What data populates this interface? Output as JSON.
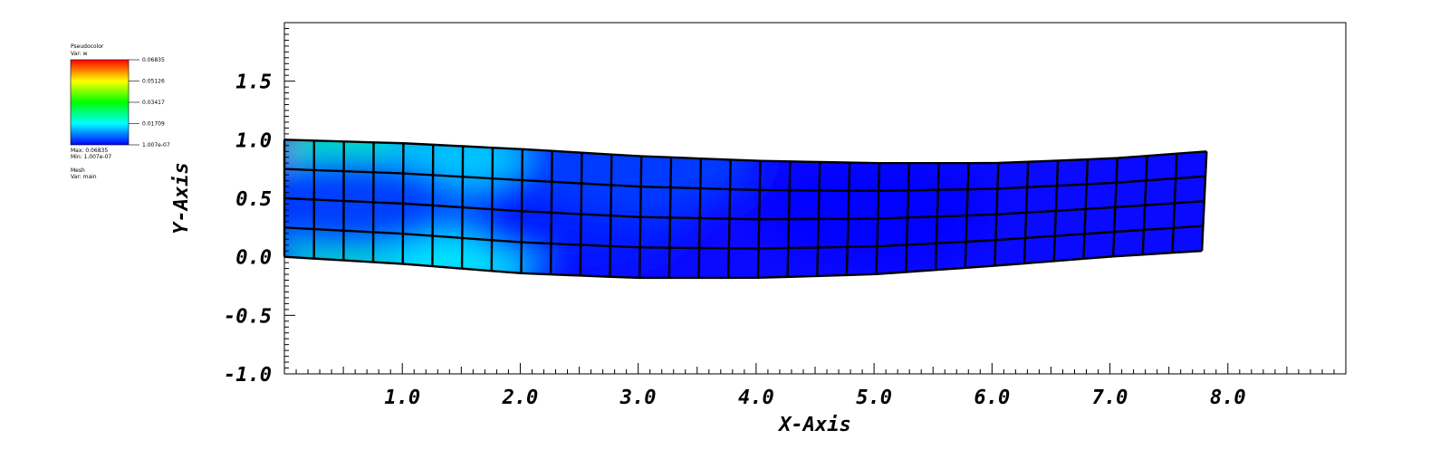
{
  "chart_data": {
    "type": "heatmap",
    "xlabel": "X-Axis",
    "ylabel": "Y-Axis",
    "xlim": [
      0.0,
      9.0
    ],
    "ylim": [
      -1.0,
      2.0
    ],
    "xticks": [
      "1.0",
      "2.0",
      "3.0",
      "4.0",
      "5.0",
      "6.0",
      "7.0",
      "8.0"
    ],
    "xtick_values": [
      1,
      2,
      3,
      4,
      5,
      6,
      7,
      8
    ],
    "yticks": [
      "-1.0",
      "-0.5",
      "0.0",
      "0.5",
      "1.0",
      "1.5"
    ],
    "ytick_values": [
      -1.0,
      -0.5,
      0.0,
      0.5,
      1.0,
      1.5
    ],
    "mesh": {
      "columns": 31,
      "rows": 4,
      "x_start": 0.0,
      "x_end": 7.8,
      "bottom_edge": [
        [
          0.0,
          0.0
        ],
        [
          1.0,
          -0.06
        ],
        [
          2.0,
          -0.14
        ],
        [
          3.0,
          -0.18
        ],
        [
          4.0,
          -0.18
        ],
        [
          5.0,
          -0.15
        ],
        [
          6.0,
          -0.08
        ],
        [
          7.0,
          0.0
        ],
        [
          7.8,
          0.05
        ]
      ],
      "top_edge": [
        [
          0.0,
          1.0
        ],
        [
          1.0,
          0.97
        ],
        [
          2.0,
          0.92
        ],
        [
          3.0,
          0.86
        ],
        [
          4.0,
          0.82
        ],
        [
          5.0,
          0.8
        ],
        [
          6.0,
          0.8
        ],
        [
          7.0,
          0.84
        ],
        [
          7.8,
          0.9
        ]
      ]
    },
    "field_samples": [
      {
        "x": 0.05,
        "y": 0.95,
        "w": 0.06835
      },
      {
        "x": 0.6,
        "y": 0.9,
        "w": 0.022
      },
      {
        "x": 0.6,
        "y": 0.05,
        "w": 0.022
      },
      {
        "x": 1.5,
        "y": 0.85,
        "w": 0.014
      },
      {
        "x": 1.5,
        "y": -0.05,
        "w": 0.016
      },
      {
        "x": 0.5,
        "y": 0.45,
        "w": 0.004
      },
      {
        "x": 2.5,
        "y": 0.35,
        "w": 0.002
      },
      {
        "x": 3.0,
        "y": 0.8,
        "w": 0.004
      },
      {
        "x": 5.0,
        "y": 0.4,
        "w": 1e-07
      }
    ]
  },
  "legend": {
    "plot_name": "Pseudocolor",
    "var_label": "Var: w",
    "tick_labels": [
      "0.06835",
      "0.05126",
      "0.03417",
      "0.01709",
      "1.007e-07"
    ],
    "max_label": "Max: 0.06835",
    "min_label": "Min: 1.007e-07",
    "mesh_title": "Mesh",
    "mesh_var": "Var: main",
    "colors": [
      "#ff0000",
      "#ffff00",
      "#00ff00",
      "#00ffff",
      "#0000ff"
    ],
    "max_value": 0.06835,
    "min_value": 1.007e-07
  }
}
